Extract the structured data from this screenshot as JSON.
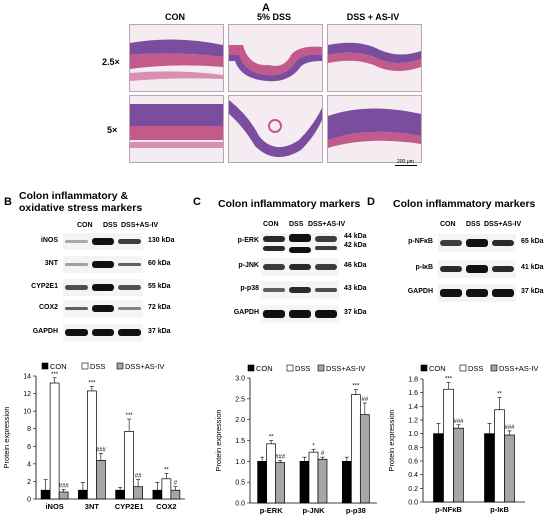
{
  "panelA": {
    "label": "A",
    "columns": [
      "CON",
      "5% DSS",
      "DSS + AS-IV"
    ],
    "rows": [
      "2.5×",
      "5×"
    ],
    "scalebar": "200 μm",
    "colors": {
      "tissue": "#c35a8c",
      "crypt": "#7a4d9e",
      "bg": "#f5ecf2"
    }
  },
  "panelB": {
    "label": "B",
    "title_line1": "Colon inflammatory &",
    "title_line2": "oxidative stress markers",
    "lanes": [
      "CON",
      "DSS",
      "DSS+AS-IV"
    ],
    "proteins": [
      {
        "name": "iNOS",
        "kda": "130 kDa"
      },
      {
        "name": "3NT",
        "kda": "60 kDa"
      },
      {
        "name": "CYP2E1",
        "kda": "55 kDa"
      },
      {
        "name": "COX2",
        "kda": "72 kDa"
      },
      {
        "name": "GAPDH",
        "kda": "37 kDa"
      }
    ]
  },
  "panelC": {
    "label": "C",
    "title": "Colon inflammatory markers",
    "lanes": [
      "CON",
      "DSS",
      "DSS+AS-IV"
    ],
    "proteins": [
      {
        "name": "p-ERK",
        "kda": "44 kDa",
        "kda2": "42 kDa"
      },
      {
        "name": "p-JNK",
        "kda": "46 kDa"
      },
      {
        "name": "p-p38",
        "kda": "43 kDa"
      },
      {
        "name": "GAPDH",
        "kda": "37 kDa"
      }
    ]
  },
  "panelD": {
    "label": "D",
    "title": "Colon inflammatory markers",
    "lanes": [
      "CON",
      "DSS",
      "DSS+AS-IV"
    ],
    "proteins": [
      {
        "name": "p-NFκB",
        "kda": "65 kDa"
      },
      {
        "name": "p-IκB",
        "kda": "41 kDa"
      },
      {
        "name": "GAPDH",
        "kda": "37 kDa"
      }
    ]
  },
  "chart_data": [
    {
      "type": "bar",
      "categories": [
        "iNOS",
        "3NT",
        "CYP2E1",
        "COX2"
      ],
      "series": [
        {
          "name": "CON",
          "values": [
            1.0,
            1.0,
            1.0,
            1.0
          ],
          "errors": [
            1.2,
            0.9,
            0.3,
            0.9
          ]
        },
        {
          "name": "DSS",
          "values": [
            13.2,
            12.3,
            7.7,
            2.3
          ],
          "errors": [
            0.6,
            0.5,
            1.4,
            0.6
          ]
        },
        {
          "name": "DSS+AS-IV",
          "values": [
            0.8,
            4.4,
            1.4,
            1.0
          ],
          "errors": [
            0.3,
            0.8,
            0.8,
            0.4
          ]
        }
      ],
      "sig": [
        [
          "",
          "***",
          "###"
        ],
        [
          "",
          "***",
          "###"
        ],
        [
          "",
          "***",
          "##"
        ],
        [
          "",
          "**",
          "#"
        ]
      ],
      "ylabel": "Protein expression",
      "ylim": [
        0,
        14
      ],
      "yticks": [
        "0",
        "2",
        "4",
        "6",
        "8",
        "10",
        "12",
        "14"
      ],
      "colors": [
        "#000000",
        "#ffffff",
        "#a6a6a6"
      ]
    },
    {
      "type": "bar",
      "categories": [
        "p-ERK",
        "p-JNK",
        "p-p38"
      ],
      "series": [
        {
          "name": "CON",
          "values": [
            1.0,
            1.0,
            1.0
          ],
          "errors": [
            0.1,
            0.1,
            0.1
          ]
        },
        {
          "name": "DSS",
          "values": [
            1.42,
            1.22,
            2.6
          ],
          "errors": [
            0.08,
            0.07,
            0.12
          ]
        },
        {
          "name": "DSS+AS-IV",
          "values": [
            0.97,
            1.05,
            2.12
          ],
          "errors": [
            0.05,
            0.05,
            0.28
          ]
        }
      ],
      "sig": [
        [
          "",
          "**",
          "###"
        ],
        [
          "",
          "*",
          "#"
        ],
        [
          "",
          "***",
          "##"
        ]
      ],
      "ylabel": "Protein expression",
      "ylim": [
        0,
        3.0
      ],
      "yticks": [
        "0.0",
        "0.5",
        "1.0",
        "1.5",
        "2.0",
        "2.5",
        "3.0"
      ],
      "colors": [
        "#000000",
        "#ffffff",
        "#a6a6a6"
      ]
    },
    {
      "type": "bar",
      "categories": [
        "p-NFκB",
        "p-IκB"
      ],
      "series": [
        {
          "name": "CON",
          "values": [
            1.0,
            1.0
          ],
          "errors": [
            0.15,
            0.15
          ]
        },
        {
          "name": "DSS",
          "values": [
            1.65,
            1.35
          ],
          "errors": [
            0.1,
            0.18
          ]
        },
        {
          "name": "DSS+AS-IV",
          "values": [
            1.08,
            0.98
          ],
          "errors": [
            0.05,
            0.06
          ]
        }
      ],
      "sig": [
        [
          "",
          "***",
          "###"
        ],
        [
          "",
          "**",
          "###"
        ]
      ],
      "ylabel": "Protein expression",
      "ylim": [
        0,
        1.8
      ],
      "yticks": [
        "0.0",
        "0.2",
        "0.4",
        "0.6",
        "0.8",
        "1.0",
        "1.2",
        "1.4",
        "1.6",
        "1.8"
      ],
      "colors": [
        "#000000",
        "#ffffff",
        "#a6a6a6"
      ]
    }
  ]
}
